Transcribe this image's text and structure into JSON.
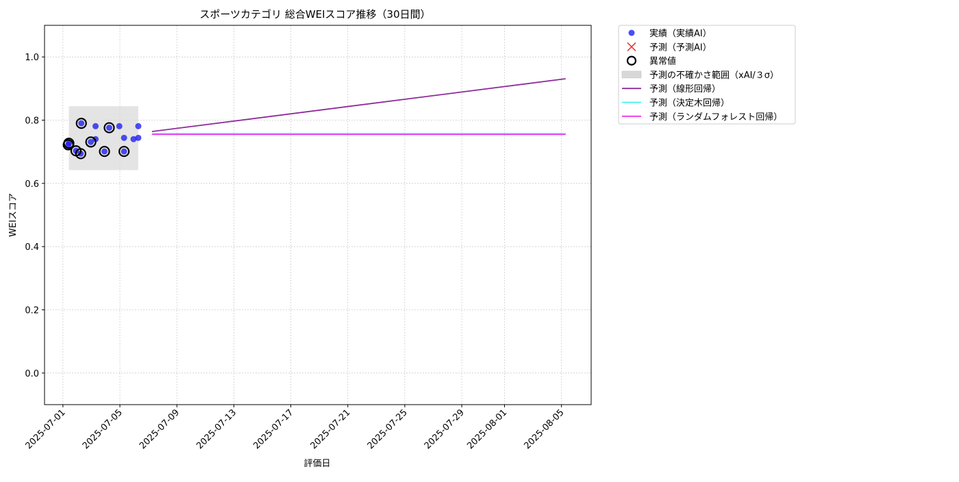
{
  "chart_data": {
    "type": "scatter",
    "title": "スポーツカテゴリ 総合WEIスコア推移（30日間）",
    "x_label": "評価日",
    "y_label": "WEIスコア",
    "xlim": [
      "2025-06-29T17:00",
      "2025-08-07T02:00"
    ],
    "xticks": [
      "2025-07-01",
      "2025-07-05",
      "2025-07-09",
      "2025-07-13",
      "2025-07-17",
      "2025-07-21",
      "2025-07-25",
      "2025-07-29",
      "2025-08-01",
      "2025-08-05"
    ],
    "ylim": [
      -0.1,
      1.1
    ],
    "yticks": [
      {
        "value": 0,
        "label": "0.0"
      },
      {
        "value": 0.2,
        "label": "0.2"
      },
      {
        "value": 0.4,
        "label": "0.4"
      },
      {
        "value": 0.6,
        "label": "0.6"
      },
      {
        "value": 0.8,
        "label": "0.8"
      },
      {
        "value": 1,
        "label": "1.0"
      }
    ],
    "grid": true,
    "legend": "outside upper right",
    "series": [
      {
        "name": "実績（実績AI）",
        "kind": "scatter",
        "color": "#2020f0",
        "x": [
          "2025-07-01T09:00",
          "2025-07-01T10:00",
          "2025-07-01T22:00",
          "2025-07-02T06:00",
          "2025-07-02T07:00",
          "2025-07-02T23:00",
          "2025-07-03T07:00",
          "2025-07-03T07:00",
          "2025-07-03T22:00",
          "2025-07-04T06:00",
          "2025-07-04T23:00",
          "2025-07-05T07:00",
          "2025-07-05T07:00",
          "2025-07-05T23:00",
          "2025-07-06T07:00",
          "2025-07-06T07:00"
        ],
        "values": [
          0.722,
          0.727,
          0.703,
          0.694,
          0.79,
          0.731,
          0.781,
          0.74,
          0.701,
          0.776,
          0.781,
          0.744,
          0.701,
          0.74,
          0.781,
          0.744
        ]
      },
      {
        "name": "予測（予測AI）",
        "kind": "cross",
        "color": "#f03030",
        "x": [],
        "values": []
      },
      {
        "name": "異常値",
        "kind": "ring",
        "color": "#000000",
        "x": [
          "2025-07-01T09:00",
          "2025-07-01T10:00",
          "2025-07-01T22:00",
          "2025-07-02T06:00",
          "2025-07-02T07:00",
          "2025-07-02T23:00",
          "2025-07-03T22:00",
          "2025-07-04T06:00",
          "2025-07-05T07:00"
        ],
        "values": [
          0.722,
          0.727,
          0.703,
          0.694,
          0.79,
          0.731,
          0.701,
          0.776,
          0.701
        ]
      },
      {
        "name": "予測の不確かさ範囲（xAI/３σ）",
        "kind": "band",
        "color": "#d8d8d8",
        "x": [
          "2025-07-01T10:00",
          "2025-07-06T07:00"
        ],
        "lower": [
          0.642,
          0.642
        ],
        "upper": [
          0.844,
          0.844
        ]
      },
      {
        "name": "予測（線形回帰）",
        "kind": "line",
        "color": "#8e2a9a",
        "x": [
          "2025-07-07T06:00",
          "2025-08-05T07:00"
        ],
        "values": [
          0.764,
          0.931
        ]
      },
      {
        "name": "予測（決定木回帰）",
        "kind": "line",
        "color": "#40f0f0",
        "x": [
          "2025-07-07T06:00",
          "2025-08-05T07:00"
        ],
        "values": [
          0.757,
          0.757
        ]
      },
      {
        "name": "予測（ランダムフォレスト回帰）",
        "kind": "line",
        "color": "#f030f0",
        "x": [
          "2025-07-07T06:00",
          "2025-08-05T07:00"
        ],
        "values": [
          0.755,
          0.755
        ]
      }
    ]
  }
}
